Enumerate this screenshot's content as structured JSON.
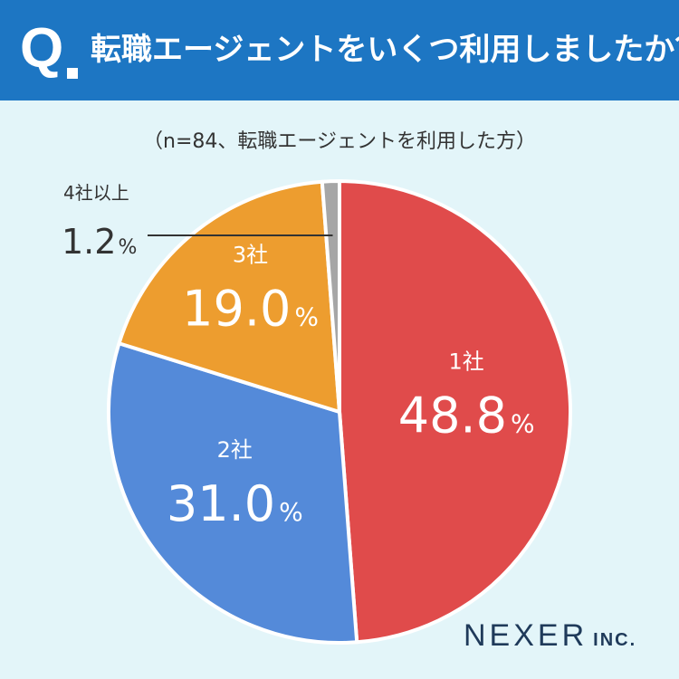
{
  "header": {
    "q_label": "Q",
    "question": "転職エージェントをいくつ利用しましたか？"
  },
  "sample_note": "（n=84、転職エージェントを利用した方）",
  "logo": {
    "main": "NEXER",
    "sub": "INC."
  },
  "chart_data": {
    "type": "pie",
    "title": "転職エージェントをいくつ利用しましたか？",
    "subtitle": "（n=84、転職エージェントを利用した方）",
    "unit": "%",
    "categories": [
      "1社",
      "2社",
      "3社",
      "4社以上"
    ],
    "values": [
      48.8,
      31.0,
      19.0,
      1.2
    ],
    "value_labels": [
      "48.8",
      "31.0",
      "19.0",
      "1.2"
    ],
    "colors": [
      "#e04b4b",
      "#548ad9",
      "#ed9d2f",
      "#a6a6a6"
    ],
    "start": "12 o'clock",
    "direction": "clockwise"
  }
}
